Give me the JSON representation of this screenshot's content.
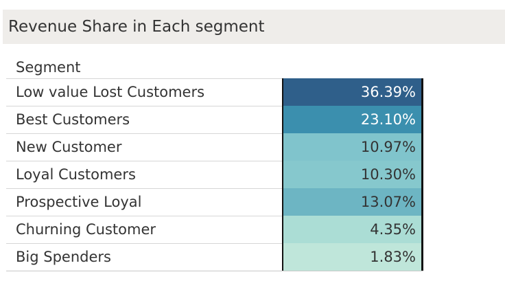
{
  "title": "Revenue Share in Each segment",
  "chart_data": {
    "type": "table",
    "title": "Revenue Share in Each segment",
    "row_header": "Segment",
    "measure_format": "percent",
    "rows": [
      {
        "segment": "Low value Lost Customers",
        "value": 36.39,
        "label": "36.39%",
        "color": "#2f5f8a",
        "text_color": "#ffffff"
      },
      {
        "segment": "Best Customers",
        "value": 23.1,
        "label": "23.10%",
        "color": "#3b8fae",
        "text_color": "#ffffff"
      },
      {
        "segment": "New Customer",
        "value": 10.97,
        "label": "10.97%",
        "color": "#80c4cc",
        "text_color": "#333333"
      },
      {
        "segment": "Loyal Customers",
        "value": 10.3,
        "label": "10.30%",
        "color": "#86c8cd",
        "text_color": "#333333"
      },
      {
        "segment": "Prospective Loyal",
        "value": 13.07,
        "label": "13.07%",
        "color": "#6db5c3",
        "text_color": "#333333"
      },
      {
        "segment": "Churning Customer",
        "value": 4.35,
        "label": "4.35%",
        "color": "#abddd5",
        "text_color": "#333333"
      },
      {
        "segment": "Big Spenders",
        "value": 1.83,
        "label": "1.83%",
        "color": "#bfe6da",
        "text_color": "#333333"
      }
    ]
  }
}
